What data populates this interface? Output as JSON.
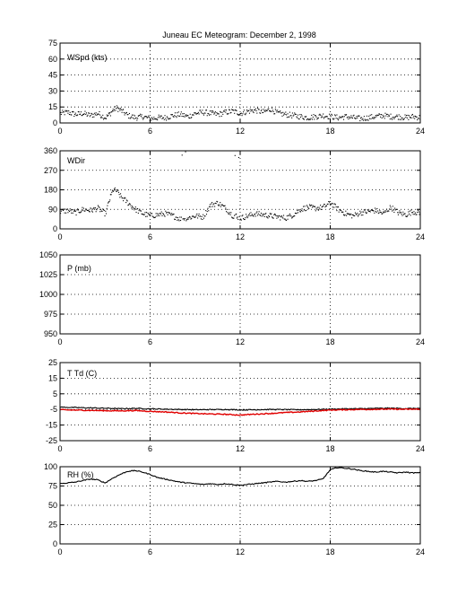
{
  "title": "Juneau EC Meteogram:  December  2, 1998",
  "chart_data": [
    {
      "type": "scatter",
      "label": "WSpd (kts)",
      "xlim": [
        0,
        24
      ],
      "ylim": [
        0,
        75
      ],
      "xticks": [
        0,
        6,
        12,
        18,
        24
      ],
      "yticks": [
        0,
        15,
        30,
        45,
        60,
        75
      ],
      "grid": true,
      "series": [
        {
          "color": "#000000",
          "x": [
            0,
            0.5,
            1,
            1.5,
            2,
            2.5,
            3,
            3.25,
            3.5,
            3.75,
            4,
            4.5,
            5,
            5.5,
            6,
            6.5,
            7,
            7.5,
            8,
            8.5,
            9,
            9.5,
            10,
            10.5,
            11,
            11.5,
            12,
            12.5,
            13,
            13.5,
            14,
            14.5,
            15,
            15.5,
            16,
            16.5,
            17,
            17.5,
            18,
            18.5,
            19,
            19.5,
            20,
            20.5,
            21,
            21.5,
            22,
            22.5,
            23,
            23.5,
            24
          ],
          "values": [
            9,
            10,
            8,
            9,
            7,
            9,
            5,
            8,
            12,
            14,
            12,
            7,
            5,
            6,
            4,
            5,
            5,
            7,
            8,
            6,
            9,
            10,
            9,
            8,
            10,
            11,
            9,
            11,
            12,
            10,
            13,
            9,
            8,
            7,
            6,
            5,
            6,
            7,
            6,
            5,
            6,
            5,
            4,
            5,
            6,
            7,
            6,
            6,
            5,
            6,
            5
          ]
        }
      ]
    },
    {
      "type": "scatter",
      "label": "WDir",
      "xlim": [
        0,
        24
      ],
      "ylim": [
        0,
        360
      ],
      "xticks": [
        0,
        6,
        12,
        18,
        24
      ],
      "yticks": [
        0,
        90,
        180,
        270,
        360
      ],
      "grid": true,
      "series": [
        {
          "color": "#000000",
          "x": [
            0,
            0.5,
            1,
            1.5,
            2,
            2.5,
            3,
            3.25,
            3.5,
            3.75,
            4,
            4.5,
            5,
            5.5,
            6,
            6.5,
            7,
            7.5,
            8,
            8.2,
            8.5,
            9,
            9.5,
            10,
            10.5,
            11,
            11.5,
            11.75,
            12,
            12.5,
            13,
            13.5,
            14,
            14.5,
            15,
            15.5,
            16,
            16.5,
            17,
            17.5,
            18,
            18.5,
            19,
            19.5,
            20,
            20.5,
            21,
            21.5,
            22,
            22.5,
            23,
            23.5,
            24
          ],
          "values": [
            80,
            85,
            75,
            90,
            85,
            95,
            70,
            130,
            180,
            175,
            150,
            120,
            90,
            70,
            60,
            65,
            70,
            60,
            45,
            350,
            50,
            60,
            55,
            110,
            120,
            95,
            60,
            340,
            50,
            60,
            70,
            65,
            60,
            55,
            50,
            65,
            90,
            100,
            95,
            100,
            120,
            90,
            70,
            60,
            75,
            80,
            85,
            70,
            100,
            75,
            65,
            80,
            70
          ]
        }
      ]
    },
    {
      "type": "line",
      "label": "P (mb)",
      "xlim": [
        0,
        24
      ],
      "ylim": [
        950,
        1050
      ],
      "xticks": [
        0,
        6,
        12,
        18,
        24
      ],
      "yticks": [
        950,
        975,
        1000,
        1025,
        1050
      ],
      "grid": true,
      "series": []
    },
    {
      "type": "line",
      "label": "T Td (C)",
      "xlim": [
        0,
        24
      ],
      "ylim": [
        -25,
        25
      ],
      "xticks": [
        0,
        6,
        12,
        18,
        24
      ],
      "yticks": [
        -25,
        -15,
        -5,
        5,
        15,
        25
      ],
      "grid": true,
      "series": [
        {
          "color": "#000000",
          "x": [
            0,
            1,
            2,
            3,
            4,
            5,
            6,
            7,
            8,
            9,
            10,
            11,
            12,
            13,
            14,
            15,
            16,
            17,
            18,
            19,
            20,
            21,
            22,
            23,
            24
          ],
          "values": [
            -3.5,
            -3.8,
            -4.0,
            -4.2,
            -4.5,
            -4.3,
            -4.6,
            -4.8,
            -5.0,
            -5.2,
            -5.1,
            -5.0,
            -5.3,
            -5.2,
            -5.0,
            -5.1,
            -5.2,
            -5.0,
            -4.8,
            -4.6,
            -4.5,
            -4.3,
            -4.2,
            -4.4,
            -4.3
          ]
        },
        {
          "color": "#e00000",
          "x": [
            0,
            1,
            2,
            3,
            4,
            5,
            6,
            7,
            8,
            9,
            10,
            11,
            12,
            13,
            14,
            15,
            16,
            17,
            18,
            19,
            20,
            21,
            22,
            23,
            24
          ],
          "values": [
            -5.2,
            -5.4,
            -5.6,
            -5.8,
            -5.9,
            -5.7,
            -6.2,
            -6.6,
            -7.2,
            -7.6,
            -7.9,
            -8.1,
            -8.6,
            -8.0,
            -7.6,
            -7.0,
            -6.6,
            -6.0,
            -5.4,
            -5.2,
            -5.0,
            -4.9,
            -4.8,
            -4.9,
            -4.8
          ]
        }
      ]
    },
    {
      "type": "line",
      "label": "RH (%)",
      "xlim": [
        0,
        24
      ],
      "ylim": [
        0,
        100
      ],
      "xticks": [
        0,
        6,
        12,
        18,
        24
      ],
      "yticks": [
        0,
        25,
        50,
        75,
        100
      ],
      "grid": true,
      "series": [
        {
          "color": "#000000",
          "x": [
            0,
            0.5,
            1,
            1.5,
            2,
            2.5,
            3,
            3.5,
            4,
            4.5,
            5,
            5.5,
            6,
            6.5,
            7,
            7.5,
            8,
            8.5,
            9,
            9.5,
            10,
            10.5,
            11,
            11.5,
            12,
            12.5,
            13,
            13.5,
            14,
            14.5,
            15,
            15.5,
            16,
            16.5,
            17,
            17.5,
            18,
            18.5,
            19,
            19.5,
            20,
            20.5,
            21,
            21.5,
            22,
            22.5,
            23,
            23.5,
            24
          ],
          "values": [
            78,
            79,
            80,
            82,
            84,
            83,
            79,
            85,
            90,
            94,
            95,
            93,
            90,
            86,
            84,
            82,
            80,
            79,
            78,
            77,
            78,
            77,
            78,
            77,
            76,
            77,
            78,
            79,
            80,
            81,
            80,
            81,
            82,
            81,
            82,
            84,
            96,
            99,
            98,
            97,
            95,
            94,
            93,
            94,
            93,
            92,
            93,
            92,
            92
          ]
        }
      ]
    }
  ]
}
